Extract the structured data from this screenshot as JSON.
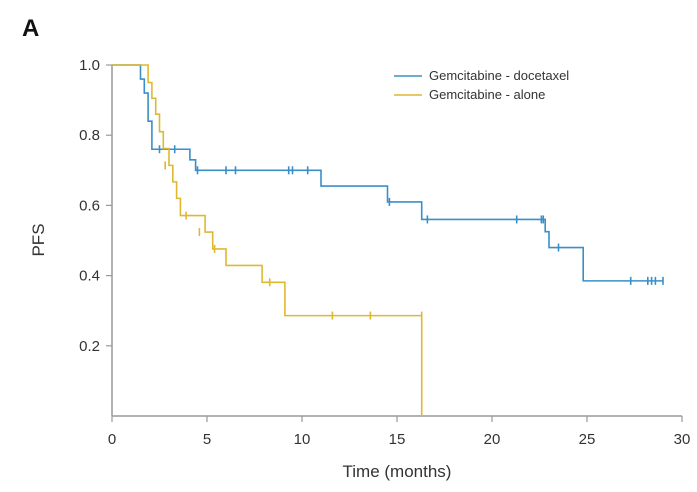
{
  "panel_label": "A",
  "chart_data": {
    "type": "line",
    "title": "",
    "xlabel": "Time (months)",
    "ylabel": "PFS",
    "xlim": [
      0,
      30
    ],
    "ylim": [
      0,
      1.0
    ],
    "x_ticks": [
      0,
      5,
      10,
      15,
      20,
      25,
      30
    ],
    "x_tick_labels": [
      "0",
      "5",
      "10",
      "15",
      "20",
      "25",
      "30"
    ],
    "y_ticks": [
      0.2,
      0.4,
      0.6,
      0.8,
      1.0
    ],
    "y_tick_labels": [
      "0.2",
      "0.4",
      "0.6",
      "0.8",
      "1.0"
    ],
    "grid": false,
    "legend_position": "top-right",
    "series": [
      {
        "name": "Gemcitabine - docetaxel",
        "color": "#3a8fc8",
        "steps": [
          [
            0,
            1.0
          ],
          [
            1.5,
            0.96
          ],
          [
            1.7,
            0.92
          ],
          [
            1.9,
            0.84
          ],
          [
            2.1,
            0.76
          ],
          [
            4.1,
            0.73
          ],
          [
            4.4,
            0.7
          ],
          [
            11.0,
            0.655
          ],
          [
            14.5,
            0.61
          ],
          [
            16.3,
            0.56
          ],
          [
            22.8,
            0.525
          ],
          [
            23.0,
            0.48
          ],
          [
            24.8,
            0.385
          ],
          [
            29.0,
            0.385
          ]
        ],
        "censored": [
          [
            2.5,
            0.76
          ],
          [
            3.3,
            0.76
          ],
          [
            4.5,
            0.7
          ],
          [
            6.0,
            0.7
          ],
          [
            6.5,
            0.7
          ],
          [
            9.3,
            0.7
          ],
          [
            9.5,
            0.7
          ],
          [
            10.3,
            0.7
          ],
          [
            14.6,
            0.61
          ],
          [
            16.6,
            0.56
          ],
          [
            21.3,
            0.56
          ],
          [
            22.6,
            0.56
          ],
          [
            22.7,
            0.56
          ],
          [
            23.5,
            0.48
          ],
          [
            27.3,
            0.385
          ],
          [
            28.2,
            0.385
          ],
          [
            28.4,
            0.385
          ],
          [
            28.6,
            0.385
          ],
          [
            29.0,
            0.385
          ]
        ]
      },
      {
        "name": "Gemcitabine - alone",
        "color": "#e0b830",
        "steps": [
          [
            0,
            1.0
          ],
          [
            1.9,
            0.95
          ],
          [
            2.1,
            0.905
          ],
          [
            2.3,
            0.86
          ],
          [
            2.5,
            0.81
          ],
          [
            2.7,
            0.762
          ],
          [
            3.0,
            0.714
          ],
          [
            3.2,
            0.667
          ],
          [
            3.4,
            0.62
          ],
          [
            3.6,
            0.571
          ],
          [
            4.9,
            0.524
          ],
          [
            5.3,
            0.476
          ],
          [
            6.0,
            0.429
          ],
          [
            7.9,
            0.381
          ],
          [
            9.1,
            0.286
          ],
          [
            16.3,
            0.0
          ]
        ],
        "censored": [
          [
            2.8,
            0.714
          ],
          [
            3.9,
            0.571
          ],
          [
            4.6,
            0.524
          ],
          [
            5.4,
            0.476
          ],
          [
            8.3,
            0.381
          ],
          [
            11.6,
            0.286
          ],
          [
            13.6,
            0.286
          ],
          [
            16.3,
            0.286
          ]
        ]
      }
    ]
  }
}
